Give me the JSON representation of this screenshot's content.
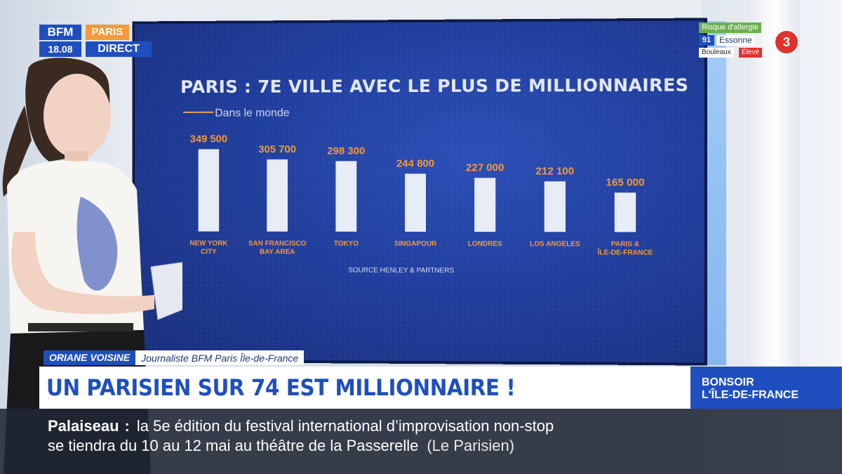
{
  "logo": {
    "brand": "BFM",
    "time": "18.08",
    "region": "PARIS",
    "live": "DIRECT"
  },
  "pollen": {
    "title": "Risque d'allergie",
    "dept_number": "91",
    "dept_name": "Essonne",
    "tree": "Bouleaux",
    "level": "Élevé",
    "risk_index": "3"
  },
  "chart_data": {
    "type": "bar",
    "title": "PARIS : 7E VILLE AVEC LE PLUS DE MILLIONNAIRES",
    "subtitle": "Dans le monde",
    "categories": [
      "NEW YORK CITY",
      "SAN FRANCISCO BAY AREA",
      "TOKYO",
      "SINGAPOUR",
      "LONDRES",
      "LOS ANGELES",
      "PARIS & ÎLE-DE-FRANCE"
    ],
    "category_lines": [
      [
        "NEW YORK",
        "CITY"
      ],
      [
        "SAN FRANCISCO",
        "BAY AREA"
      ],
      [
        "TOKYO"
      ],
      [
        "SINGAPOUR"
      ],
      [
        "LONDRES"
      ],
      [
        "LOS ANGELES"
      ],
      [
        "PARIS &",
        "ÎLE-DE-FRANCE"
      ]
    ],
    "values": [
      349500,
      305700,
      298300,
      244800,
      227000,
      212100,
      165000
    ],
    "value_labels": [
      "349 500",
      "305 700",
      "298 300",
      "244 800",
      "227 000",
      "212 100",
      "165 000"
    ],
    "source": "SOURCE HENLEY & PARTNERS",
    "colors": {
      "bar": "#e8ecf6",
      "value_label": "#f39a3a",
      "category_label": "#f39a3a"
    }
  },
  "lower_third": {
    "name": "ORIANE VOISINE",
    "role": "Journaliste BFM Paris Île-de-France",
    "headline": "UN PARISIEN SUR 74 EST MILLIONNAIRE !",
    "show_line1": "BONSOIR",
    "show_line2": "L'ÎLE-DE-FRANCE"
  },
  "ticker": {
    "place": "Palaiseau",
    "line1": "la 5e édition du festival international d’improvisation non-stop",
    "line2": "se tiendra du 10 au 12 mai au théâtre de la Passerelle",
    "source": "(Le Parisien)"
  },
  "colors": {
    "brand_blue": "#1f4fbf",
    "accent_orange": "#f39a3a",
    "alert_red": "#e0322d",
    "pollen_green": "#68b04c"
  }
}
